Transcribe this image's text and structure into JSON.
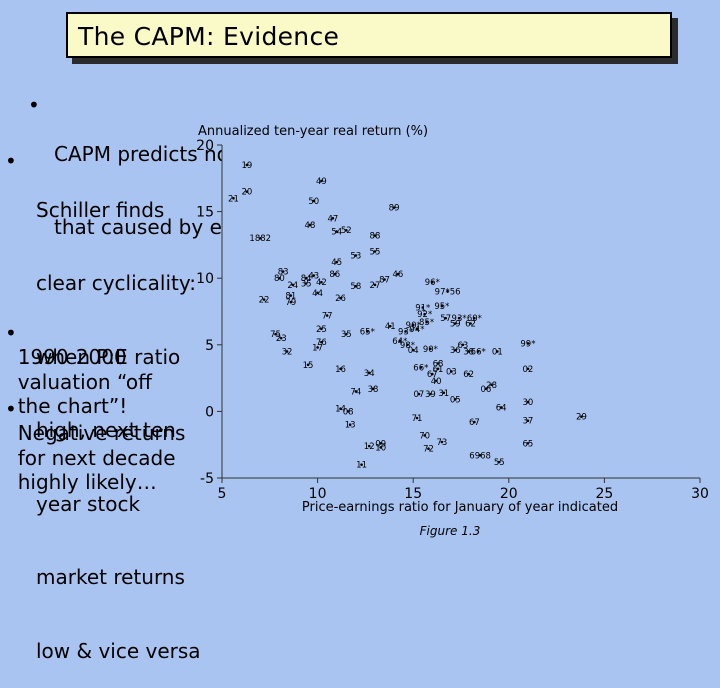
{
  "title": "The CAPM: Evidence",
  "bullets": [
    {
      "lines": [
        "CAPM predicts no cyclical behavior to prices (apart from",
        "that caused by earnings): “you can’t time the market”…"
      ]
    },
    {
      "lines": [
        "Schiller finds",
        "clear cyclicality:",
        "when P:E ratio",
        "high, next ten",
        "year stock",
        "market returns",
        "low & vice versa"
      ]
    },
    {
      "lines": [
        "1990-2000",
        "valuation “off",
        "the chart”!"
      ]
    },
    {
      "lines": [
        "Negative returns",
        "for next decade",
        "highly likely…"
      ]
    }
  ],
  "bullet_glyph": "•",
  "chart_data": {
    "type": "scatter",
    "title": "Annualized ten-year real return (%)",
    "xlabel": "Price-earnings ratio for January of year indicated",
    "caption": "Figure 1.3",
    "xlim": [
      5,
      30
    ],
    "ylim": [
      -5,
      20
    ],
    "x_ticks": [
      "5",
      "10",
      "15",
      "20",
      "25",
      "30"
    ],
    "y_ticks": [
      "-5",
      "0",
      "5",
      "10",
      "15",
      "20"
    ],
    "points": [
      {
        "x": 6.3,
        "y": 18.5,
        "label": "19"
      },
      {
        "x": 6.3,
        "y": 16.5,
        "label": "20"
      },
      {
        "x": 5.6,
        "y": 16.0,
        "label": "21"
      },
      {
        "x": 7.0,
        "y": 13.0,
        "label": "1882"
      },
      {
        "x": 7.2,
        "y": 8.4,
        "label": "22"
      },
      {
        "x": 10.2,
        "y": 17.3,
        "label": "49"
      },
      {
        "x": 9.8,
        "y": 15.8,
        "label": "50"
      },
      {
        "x": 9.6,
        "y": 14.0,
        "label": "48"
      },
      {
        "x": 10.8,
        "y": 14.5,
        "label": "47"
      },
      {
        "x": 11.0,
        "y": 13.5,
        "label": "54"
      },
      {
        "x": 11.5,
        "y": 13.6,
        "label": "52"
      },
      {
        "x": 13.0,
        "y": 13.2,
        "label": "88"
      },
      {
        "x": 14.0,
        "y": 15.3,
        "label": "89"
      },
      {
        "x": 12.0,
        "y": 11.7,
        "label": "53"
      },
      {
        "x": 13.0,
        "y": 12.0,
        "label": "55"
      },
      {
        "x": 11.0,
        "y": 11.2,
        "label": "45"
      },
      {
        "x": 8.2,
        "y": 10.5,
        "label": "83"
      },
      {
        "x": 8.0,
        "y": 10.0,
        "label": "80"
      },
      {
        "x": 8.7,
        "y": 9.5,
        "label": "24"
      },
      {
        "x": 9.4,
        "y": 10.0,
        "label": "84"
      },
      {
        "x": 9.8,
        "y": 10.2,
        "label": "43"
      },
      {
        "x": 9.4,
        "y": 9.6,
        "label": "35"
      },
      {
        "x": 10.2,
        "y": 9.7,
        "label": "42"
      },
      {
        "x": 10.9,
        "y": 10.3,
        "label": "86"
      },
      {
        "x": 12.0,
        "y": 9.4,
        "label": "58"
      },
      {
        "x": 13.0,
        "y": 9.5,
        "label": "27"
      },
      {
        "x": 13.5,
        "y": 9.9,
        "label": "87"
      },
      {
        "x": 14.2,
        "y": 10.3,
        "label": "46"
      },
      {
        "x": 16.0,
        "y": 9.7,
        "label": "96*"
      },
      {
        "x": 16.8,
        "y": 9.0,
        "label": "97*56"
      },
      {
        "x": 8.6,
        "y": 8.7,
        "label": "81"
      },
      {
        "x": 8.6,
        "y": 8.2,
        "label": "79"
      },
      {
        "x": 10.0,
        "y": 8.9,
        "label": "44"
      },
      {
        "x": 11.2,
        "y": 8.5,
        "label": "26"
      },
      {
        "x": 10.5,
        "y": 7.2,
        "label": "77"
      },
      {
        "x": 15.5,
        "y": 7.8,
        "label": "91*"
      },
      {
        "x": 16.5,
        "y": 7.9,
        "label": "95*"
      },
      {
        "x": 15.6,
        "y": 7.3,
        "label": "92*"
      },
      {
        "x": 15.7,
        "y": 6.7,
        "label": "85*"
      },
      {
        "x": 16.7,
        "y": 7.0,
        "label": "57"
      },
      {
        "x": 17.4,
        "y": 7.0,
        "label": "93*"
      },
      {
        "x": 18.2,
        "y": 7.0,
        "label": "60*"
      },
      {
        "x": 17.2,
        "y": 6.6,
        "label": "59"
      },
      {
        "x": 18.0,
        "y": 6.6,
        "label": "62"
      },
      {
        "x": 7.8,
        "y": 5.8,
        "label": "75"
      },
      {
        "x": 8.1,
        "y": 5.5,
        "label": "23"
      },
      {
        "x": 10.2,
        "y": 6.2,
        "label": "25"
      },
      {
        "x": 11.5,
        "y": 5.8,
        "label": "35"
      },
      {
        "x": 12.6,
        "y": 6.0,
        "label": "65*"
      },
      {
        "x": 13.8,
        "y": 6.4,
        "label": "41"
      },
      {
        "x": 14.6,
        "y": 6.0,
        "label": "93*"
      },
      {
        "x": 15.2,
        "y": 6.2,
        "label": "94*"
      },
      {
        "x": 15.0,
        "y": 6.5,
        "label": "90*"
      },
      {
        "x": 14.3,
        "y": 5.3,
        "label": "64*"
      },
      {
        "x": 14.7,
        "y": 5.0,
        "label": "98*"
      },
      {
        "x": 10.0,
        "y": 4.8,
        "label": "17"
      },
      {
        "x": 10.2,
        "y": 5.2,
        "label": "76"
      },
      {
        "x": 8.4,
        "y": 4.5,
        "label": "32"
      },
      {
        "x": 9.5,
        "y": 3.5,
        "label": "15"
      },
      {
        "x": 11.2,
        "y": 3.2,
        "label": "16"
      },
      {
        "x": 12.7,
        "y": 2.9,
        "label": "34"
      },
      {
        "x": 15.0,
        "y": 4.6,
        "label": "04"
      },
      {
        "x": 15.9,
        "y": 4.7,
        "label": "90*"
      },
      {
        "x": 17.6,
        "y": 5.0,
        "label": "63"
      },
      {
        "x": 17.2,
        "y": 4.6,
        "label": "36"
      },
      {
        "x": 17.9,
        "y": 4.5,
        "label": "38"
      },
      {
        "x": 18.4,
        "y": 4.5,
        "label": "66*"
      },
      {
        "x": 19.4,
        "y": 4.5,
        "label": "01"
      },
      {
        "x": 21.0,
        "y": 5.1,
        "label": "99*"
      },
      {
        "x": 15.4,
        "y": 3.3,
        "label": "66*"
      },
      {
        "x": 16.3,
        "y": 3.6,
        "label": "68"
      },
      {
        "x": 16.3,
        "y": 3.2,
        "label": "61"
      },
      {
        "x": 17.0,
        "y": 3.0,
        "label": "03"
      },
      {
        "x": 17.9,
        "y": 2.8,
        "label": "62"
      },
      {
        "x": 21.0,
        "y": 3.2,
        "label": "02"
      },
      {
        "x": 16.0,
        "y": 2.8,
        "label": "67"
      },
      {
        "x": 16.2,
        "y": 2.3,
        "label": "40"
      },
      {
        "x": 12.0,
        "y": 1.5,
        "label": "74"
      },
      {
        "x": 12.9,
        "y": 1.7,
        "label": "38"
      },
      {
        "x": 15.3,
        "y": 1.3,
        "label": "07"
      },
      {
        "x": 15.9,
        "y": 1.3,
        "label": "39"
      },
      {
        "x": 16.6,
        "y": 1.4,
        "label": "31"
      },
      {
        "x": 17.2,
        "y": 0.9,
        "label": "05"
      },
      {
        "x": 18.8,
        "y": 1.7,
        "label": "06"
      },
      {
        "x": 19.1,
        "y": 2.0,
        "label": "28"
      },
      {
        "x": 19.6,
        "y": 0.3,
        "label": "64"
      },
      {
        "x": 21.0,
        "y": 0.7,
        "label": "30"
      },
      {
        "x": 11.2,
        "y": 0.2,
        "label": "14"
      },
      {
        "x": 11.6,
        "y": 0.0,
        "label": "08"
      },
      {
        "x": 11.7,
        "y": -1.0,
        "label": "13"
      },
      {
        "x": 15.2,
        "y": -0.5,
        "label": "71"
      },
      {
        "x": 18.2,
        "y": -0.8,
        "label": "67"
      },
      {
        "x": 21.0,
        "y": -0.7,
        "label": "37"
      },
      {
        "x": 23.8,
        "y": -0.4,
        "label": "29"
      },
      {
        "x": 15.6,
        "y": -1.8,
        "label": "70"
      },
      {
        "x": 16.5,
        "y": -2.3,
        "label": "73"
      },
      {
        "x": 13.3,
        "y": -2.4,
        "label": "09"
      },
      {
        "x": 12.7,
        "y": -2.6,
        "label": "12"
      },
      {
        "x": 13.3,
        "y": -2.7,
        "label": "10"
      },
      {
        "x": 15.8,
        "y": -2.8,
        "label": "72"
      },
      {
        "x": 21.0,
        "y": -2.4,
        "label": "65"
      },
      {
        "x": 18.5,
        "y": -3.3,
        "label": "6968"
      },
      {
        "x": 19.5,
        "y": -3.8,
        "label": "55"
      },
      {
        "x": 12.3,
        "y": -4.0,
        "label": "11"
      }
    ]
  }
}
